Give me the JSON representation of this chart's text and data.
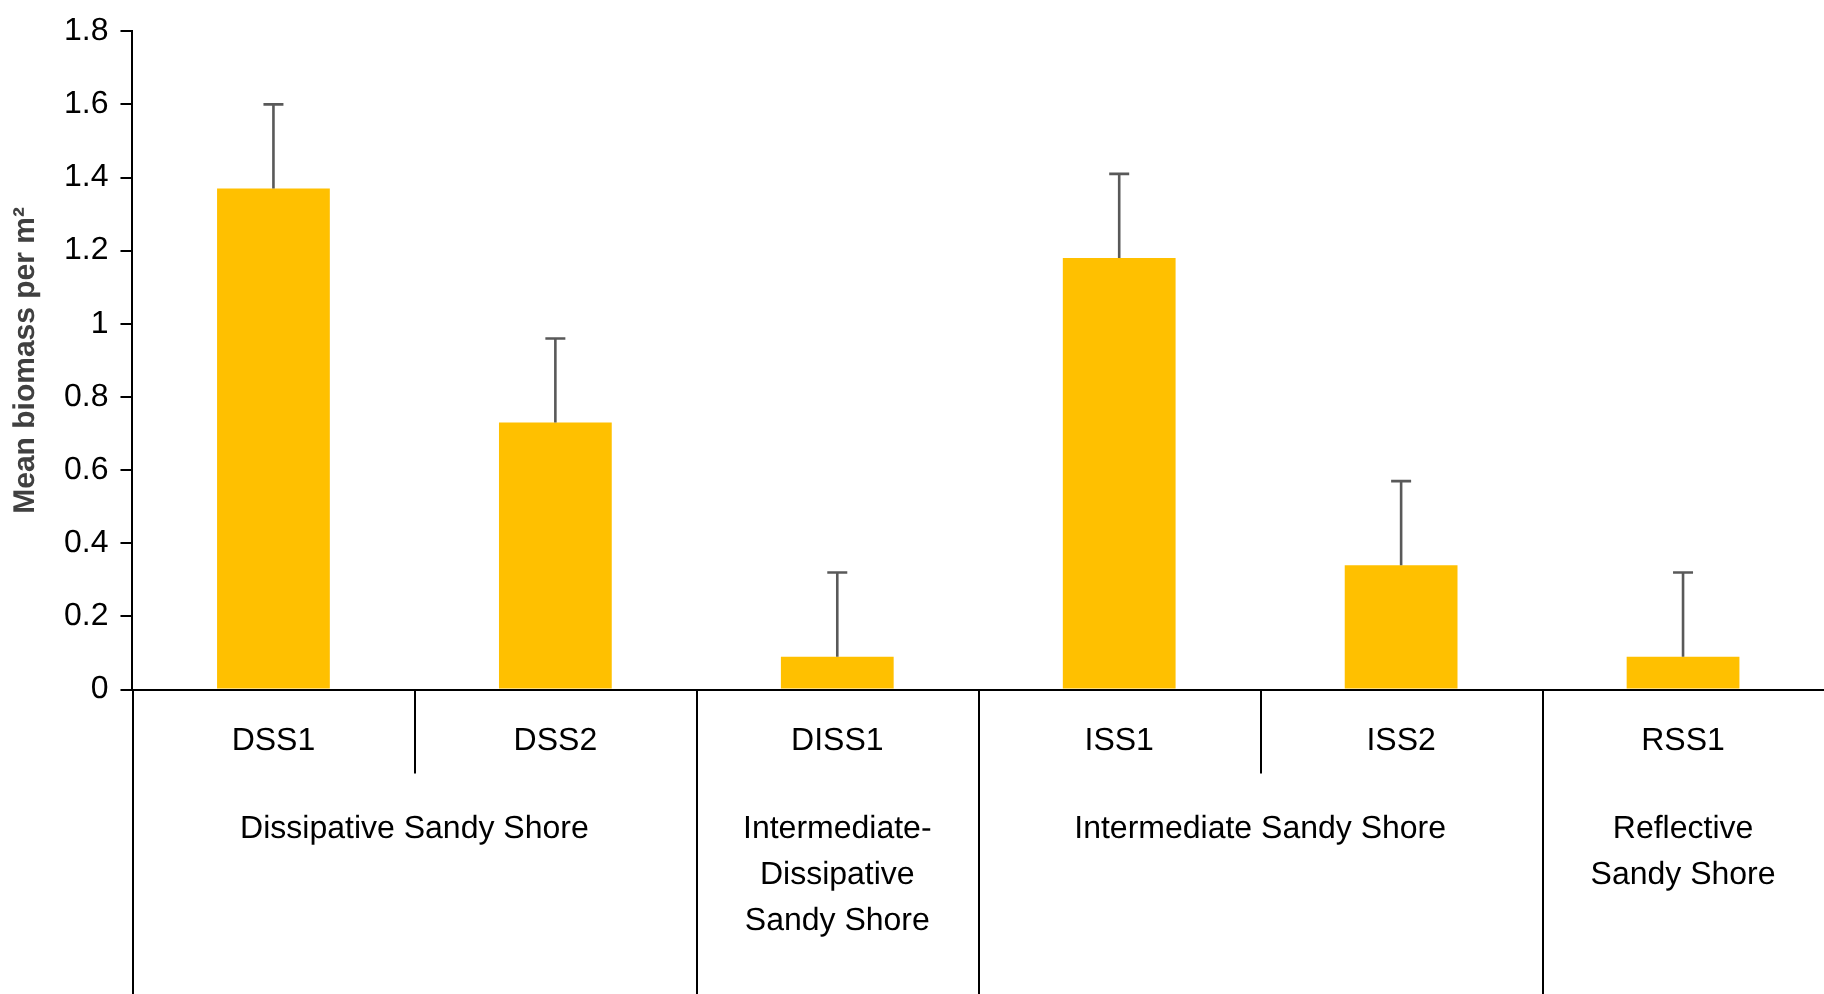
{
  "chart_data": {
    "type": "bar",
    "ylabel": "Mean biomass per m²",
    "categories": [
      "DSS1",
      "DSS2",
      "DISS1",
      "ISS1",
      "ISS2",
      "RSS1"
    ],
    "values": [
      1.37,
      0.73,
      0.09,
      1.18,
      0.34,
      0.09
    ],
    "errors": [
      [
        1.37,
        1.6
      ],
      [
        0.73,
        0.96
      ],
      [
        0.09,
        0.32
      ],
      [
        1.18,
        1.41
      ],
      [
        0.34,
        0.57
      ],
      [
        0.09,
        0.32
      ]
    ],
    "color": "#ffc000",
    "ylim": [
      0,
      1.8
    ],
    "yticks": [
      0,
      0.2,
      0.4,
      0.6,
      0.8,
      1,
      1.2,
      1.4,
      1.6,
      1.8
    ],
    "grid": false,
    "legend": false,
    "annotations": [
      "Dissipative Sandy Shore",
      "Intermediate-Dissipative Sandy Shore",
      "Intermediate Sandy Shore",
      "Reflective Sandy Shore"
    ]
  }
}
